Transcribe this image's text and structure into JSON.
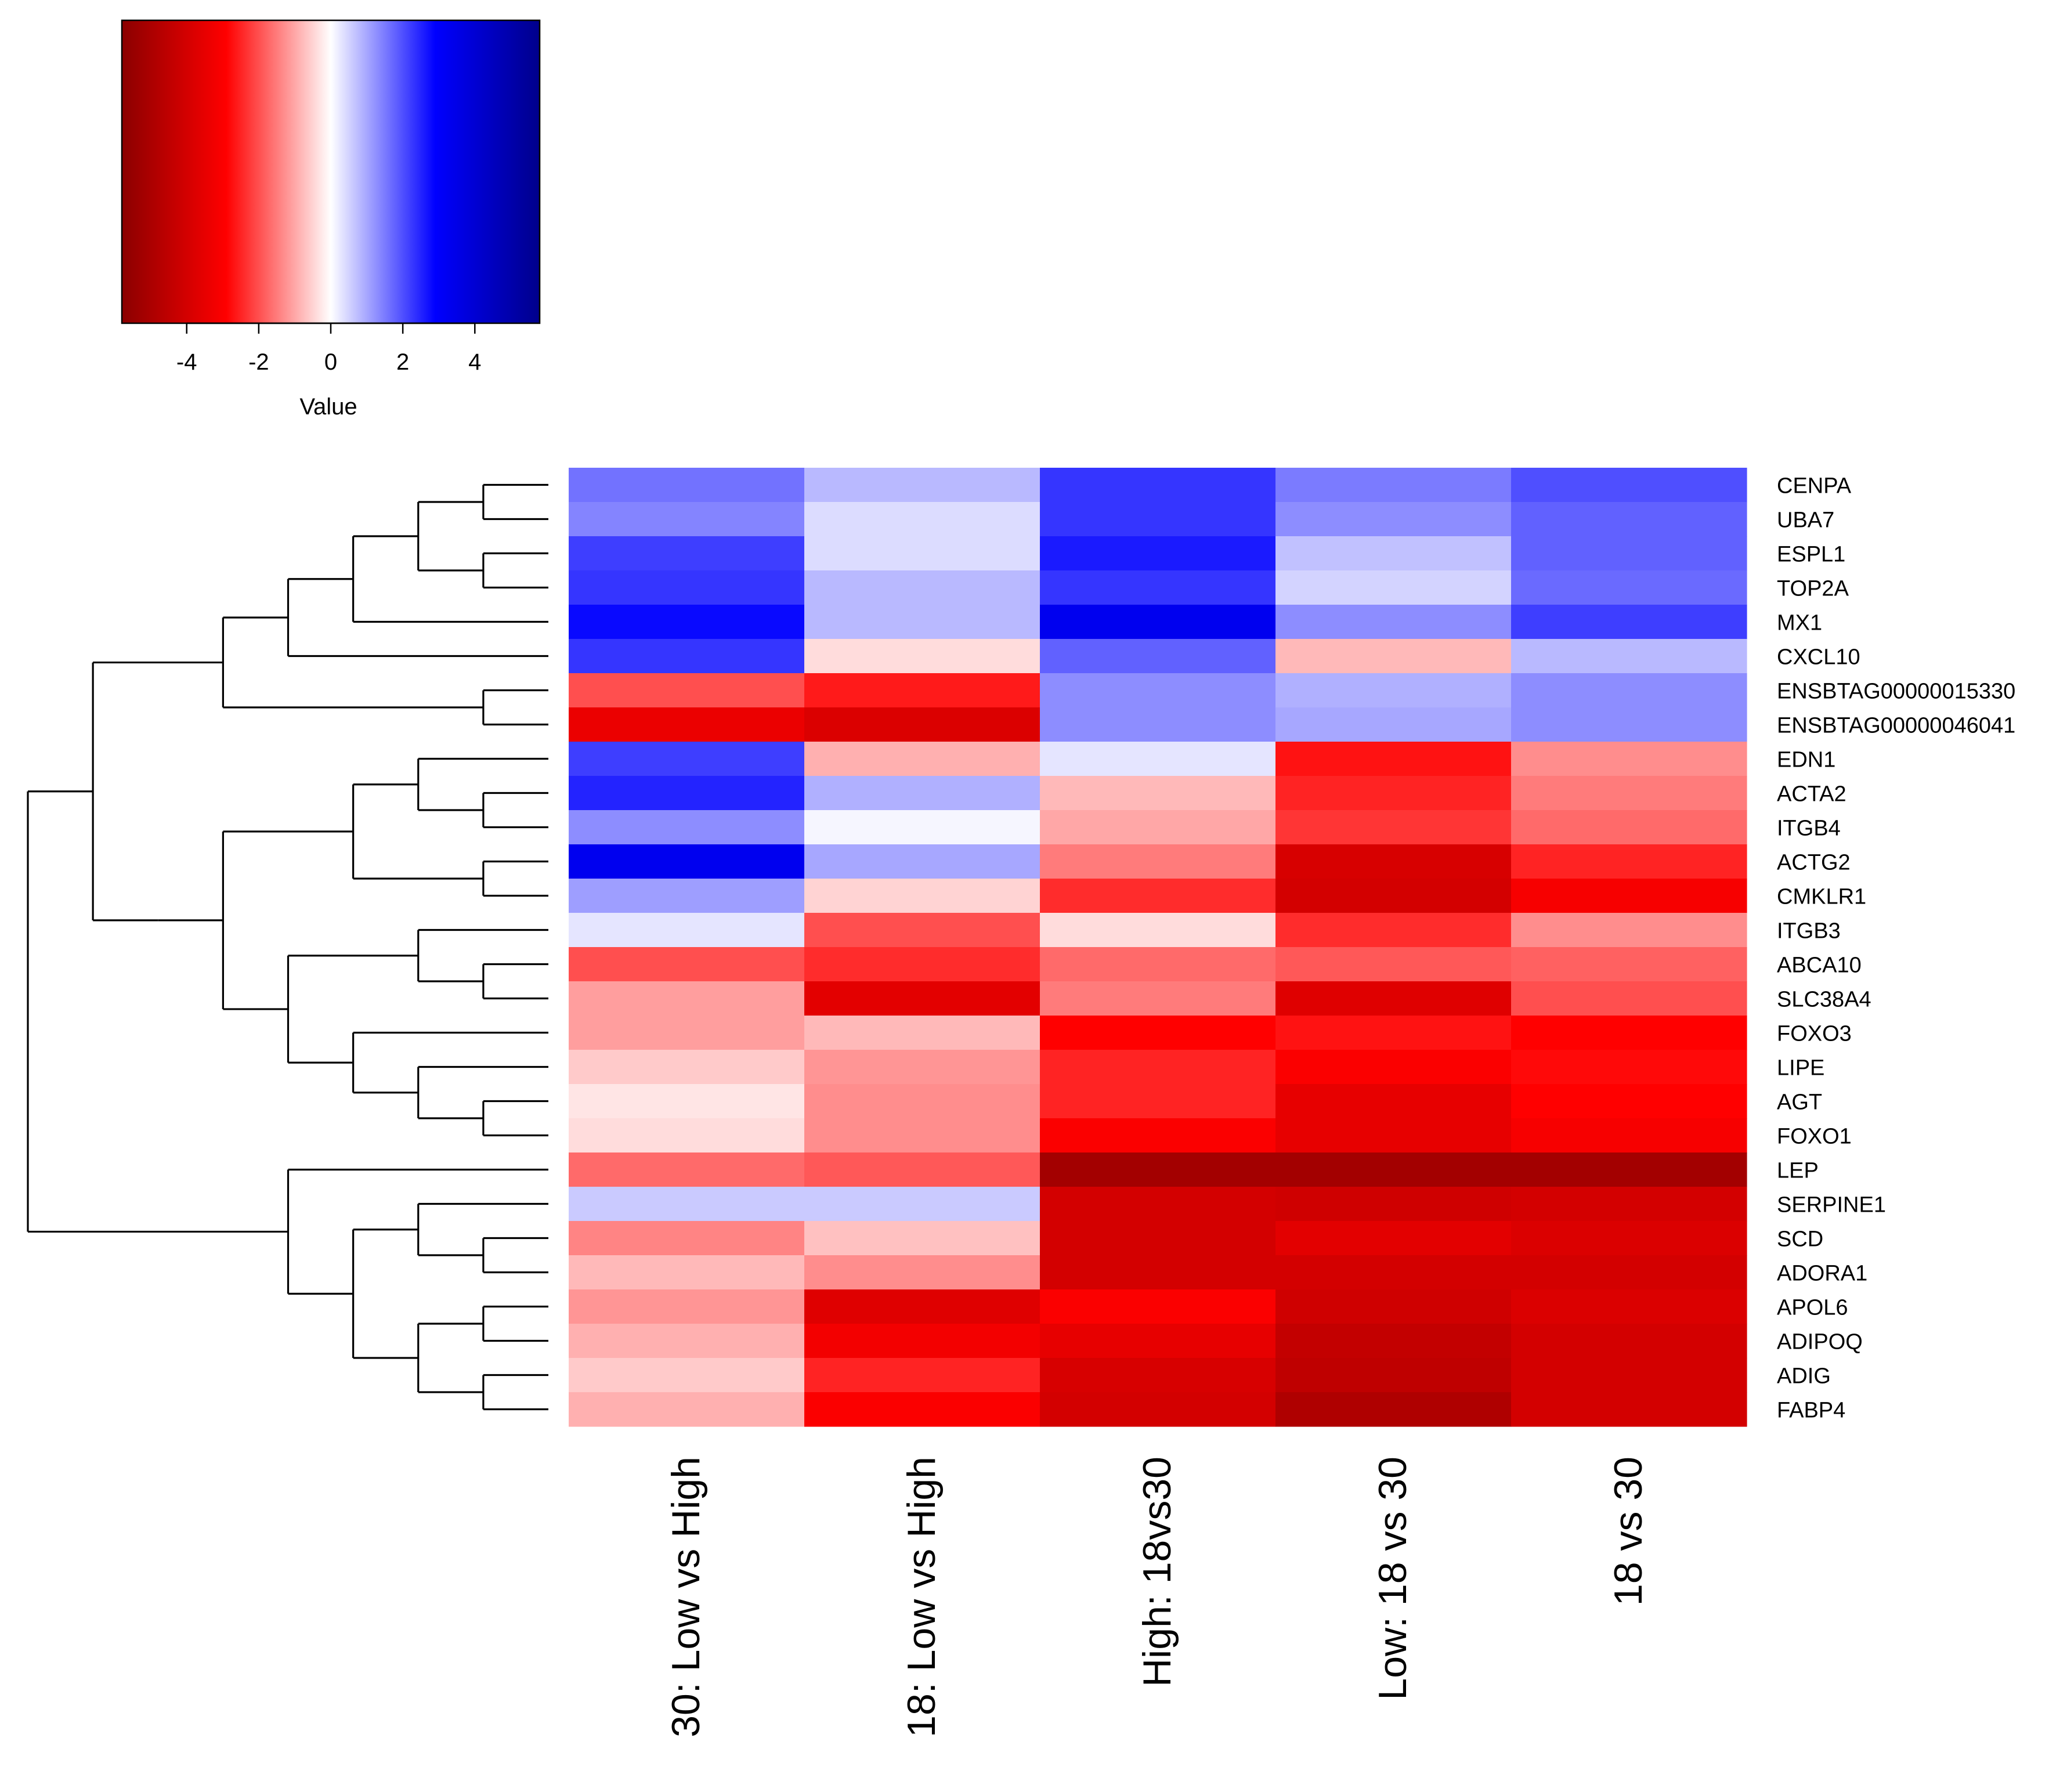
{
  "chart_data": {
    "type": "heatmap",
    "title": "",
    "color_key": {
      "label": "Value",
      "min": -5.8,
      "max": 5.8,
      "ticks": [
        -4,
        -2,
        0,
        2,
        4
      ],
      "tick_labels": [
        "-4",
        "-2",
        "0",
        "2",
        "4"
      ],
      "colors": {
        "low": "#8b0000",
        "mid_low": "#ff0000",
        "mid": "#ffffff",
        "mid_high": "#0000ff",
        "high": "#00008b"
      }
    },
    "rows": [
      "CENPA",
      "UBA7",
      "ESPL1",
      "TOP2A",
      "MX1",
      "CXCL10",
      "ENSBTAG00000015330",
      "ENSBTAG00000046041",
      "EDN1",
      "ACTA2",
      "ITGB4",
      "ACTG2",
      "CMKLR1",
      "ITGB3",
      "ABCA10",
      "SLC38A4",
      "FOXO3",
      "LIPE",
      "AGT",
      "FOXO1",
      "LEP",
      "SERPINE1",
      "SCD",
      "ADORA1",
      "APOL6",
      "ADIPOQ",
      "ADIG",
      "FABP4"
    ],
    "columns": [
      "30: Low vs High",
      "18: Low vs High",
      "High: 18vs30",
      "Low: 18 vs 30",
      "18 vs 30"
    ],
    "values": [
      [
        1.6,
        0.8,
        2.3,
        1.5,
        2.0
      ],
      [
        1.4,
        0.4,
        2.3,
        1.3,
        1.8
      ],
      [
        2.2,
        0.4,
        2.6,
        0.7,
        1.8
      ],
      [
        2.3,
        0.8,
        2.3,
        0.5,
        1.7
      ],
      [
        2.8,
        0.8,
        3.3,
        1.3,
        2.2
      ],
      [
        2.3,
        -0.4,
        1.8,
        -0.8,
        0.8
      ],
      [
        -2.0,
        -2.6,
        1.3,
        0.9,
        1.3
      ],
      [
        -3.4,
        -3.8,
        1.3,
        1.0,
        1.3
      ],
      [
        2.2,
        -0.9,
        0.3,
        -2.7,
        -1.3
      ],
      [
        2.5,
        0.9,
        -0.8,
        -2.5,
        -1.5
      ],
      [
        1.3,
        0.1,
        -1.0,
        -2.3,
        -1.7
      ],
      [
        3.3,
        1.0,
        -1.5,
        -3.9,
        -2.5
      ],
      [
        1.1,
        -0.5,
        -2.4,
        -4.0,
        -3.1
      ],
      [
        0.3,
        -2.0,
        -0.4,
        -2.4,
        -1.3
      ],
      [
        -2.0,
        -2.4,
        -1.7,
        -1.9,
        -1.8
      ],
      [
        -1.1,
        -3.6,
        -1.5,
        -3.7,
        -2.0
      ],
      [
        -1.1,
        -0.8,
        -2.9,
        -2.7,
        -2.9
      ],
      [
        -0.6,
        -1.2,
        -2.5,
        -3.0,
        -2.8
      ],
      [
        -0.3,
        -1.3,
        -2.5,
        -3.5,
        -2.9
      ],
      [
        -0.4,
        -1.3,
        -3.0,
        -3.5,
        -3.1
      ],
      [
        -1.7,
        -1.9,
        -5.2,
        -5.2,
        -5.2
      ],
      [
        0.6,
        0.6,
        -4.0,
        -4.1,
        -4.0
      ],
      [
        -1.4,
        -0.7,
        -4.0,
        -3.6,
        -3.8
      ],
      [
        -0.8,
        -1.3,
        -4.0,
        -4.0,
        -4.0
      ],
      [
        -1.2,
        -3.7,
        -3.0,
        -4.1,
        -3.8
      ],
      [
        -0.9,
        -3.2,
        -3.5,
        -4.4,
        -4.0
      ],
      [
        -0.6,
        -2.5,
        -3.9,
        -4.5,
        -4.0
      ],
      [
        -0.9,
        -3.0,
        -4.0,
        -4.9,
        -4.0
      ]
    ],
    "row_dendrogram": "(((((((CENPA,UBA7),(ESPL1,TOP2A)),MX1),CXCL10),(ENSBTAG00000015330,ENSBTAG00000046041)),((((EDN1,(ACTA2,ITGB4)),(ACTG2,CMKLR1)),((ITGB3,(ABCA10,SLC38A4)),(FOXO3,(LIPE,(AGT,FOXO1))))))),(LEP,((SERPINE1,(SCD,ADORA1)),((APOL6,ADIPOQ),(ADIG,FABP4)))))"
  }
}
